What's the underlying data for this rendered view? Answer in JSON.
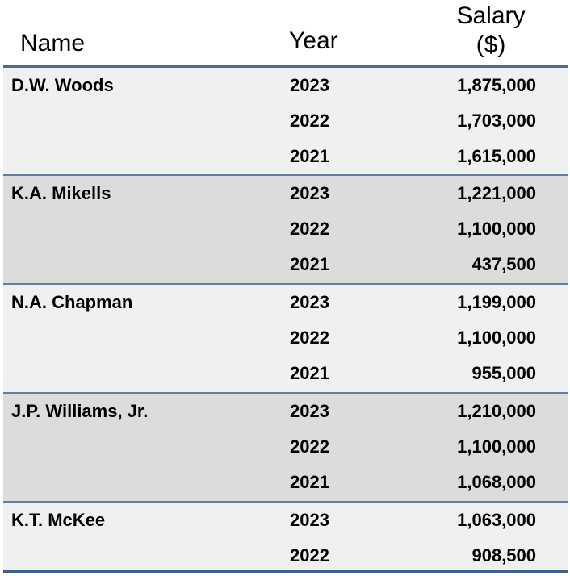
{
  "table": {
    "headers": {
      "name": "Name",
      "year": "Year",
      "salary_line1": "Salary",
      "salary_line2": "($)"
    },
    "groups": [
      {
        "name": "D.W. Woods",
        "rows": [
          {
            "year": "2023",
            "salary": "1,875,000"
          },
          {
            "year": "2022",
            "salary": "1,703,000"
          },
          {
            "year": "2021",
            "salary": "1,615,000"
          }
        ]
      },
      {
        "name": "K.A. Mikells",
        "rows": [
          {
            "year": "2023",
            "salary": "1,221,000"
          },
          {
            "year": "2022",
            "salary": "1,100,000"
          },
          {
            "year": "2021",
            "salary": "437,500"
          }
        ]
      },
      {
        "name": "N.A. Chapman",
        "rows": [
          {
            "year": "2023",
            "salary": "1,199,000"
          },
          {
            "year": "2022",
            "salary": "1,100,000"
          },
          {
            "year": "2021",
            "salary": "955,000"
          }
        ]
      },
      {
        "name": "J.P. Williams, Jr.",
        "rows": [
          {
            "year": "2023",
            "salary": "1,210,000"
          },
          {
            "year": "2022",
            "salary": "1,100,000"
          },
          {
            "year": "2021",
            "salary": "1,068,000"
          }
        ]
      },
      {
        "name": "K.T. McKee",
        "rows": [
          {
            "year": "2023",
            "salary": "1,063,000"
          },
          {
            "year": "2022",
            "salary": "908,500"
          }
        ]
      }
    ]
  },
  "colors": {
    "band_light": "#eff0f0",
    "band_dark": "#dcdcdc",
    "rule": "#4d6d96"
  }
}
